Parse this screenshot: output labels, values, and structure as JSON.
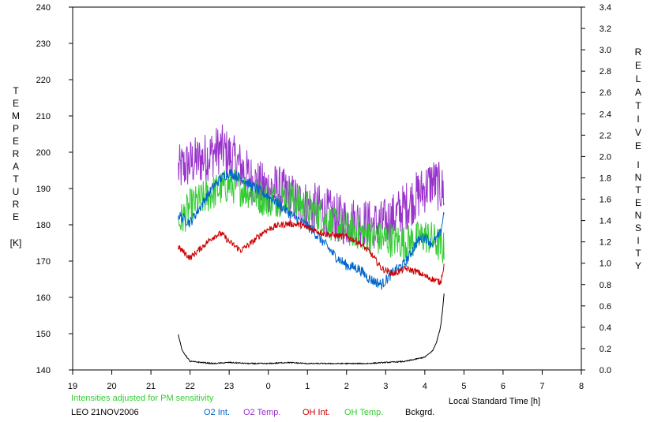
{
  "chart_data": {
    "type": "line",
    "left_axis": {
      "label_letters": [
        "T",
        "E",
        "M",
        "P",
        "E",
        "R",
        "A",
        "T",
        "U",
        "R",
        "E"
      ],
      "unit": "[K]",
      "range": [
        140,
        240
      ],
      "ticks": [
        "140",
        "150",
        "160",
        "170",
        "180",
        "190",
        "200",
        "210",
        "220",
        "230",
        "240"
      ]
    },
    "right_axis": {
      "label_word1": [
        "R",
        "E",
        "L",
        "A",
        "T",
        "I",
        "V",
        "E"
      ],
      "label_word2": [
        "I",
        "N",
        "T",
        "E",
        "N",
        "S",
        "I",
        "T",
        "Y"
      ],
      "range": [
        0.0,
        3.4
      ],
      "ticks": [
        "0.0",
        "0.2",
        "0.4",
        "0.6",
        "0.8",
        "1.0",
        "1.2",
        "1.4",
        "1.6",
        "1.8",
        "2.0",
        "2.2",
        "2.4",
        "2.6",
        "2.8",
        "3.0",
        "3.2",
        "3.4"
      ]
    },
    "x_axis": {
      "label": "Local Standard Time [h]",
      "range": [
        19,
        32
      ],
      "ticks": [
        "19",
        "20",
        "21",
        "22",
        "23",
        "0",
        "1",
        "2",
        "3",
        "4",
        "5",
        "6",
        "7",
        "8"
      ]
    },
    "note": "Intensities adjusted for PM sensitivity",
    "site_date": "LEO 21NOV2006",
    "legend": [
      {
        "label": "O2 Int.",
        "color": "#0066cc"
      },
      {
        "label": "O2 Temp.",
        "color": "#9933cc"
      },
      {
        "label": "OH Int.",
        "color": "#cc0000"
      },
      {
        "label": "OH Temp.",
        "color": "#33cc33"
      },
      {
        "label": "Bckgrd.",
        "color": "#000000"
      }
    ],
    "series": [
      {
        "name": "O2 Temp.",
        "axis": "left",
        "color": "#9933cc",
        "noise": 7,
        "x": [
          21.7,
          22.0,
          22.3,
          22.6,
          22.8,
          23.0,
          23.3,
          23.6,
          23.9,
          24.2,
          24.5,
          24.8,
          25.1,
          25.4,
          25.7,
          26.0,
          26.3,
          26.6,
          26.9,
          27.2,
          27.5,
          27.8,
          28.0,
          28.2,
          28.4,
          28.5
        ],
        "y": [
          195,
          197,
          198,
          200,
          201,
          199,
          196,
          192,
          190,
          190,
          188,
          186,
          185,
          184,
          182,
          181,
          181,
          180,
          180,
          182,
          185,
          188,
          190,
          192,
          190,
          189
        ]
      },
      {
        "name": "OH Temp.",
        "axis": "left",
        "color": "#33cc33",
        "noise": 5,
        "x": [
          21.7,
          22.0,
          22.3,
          22.6,
          22.8,
          23.0,
          23.3,
          23.6,
          23.9,
          24.2,
          24.5,
          24.8,
          25.1,
          25.4,
          25.7,
          26.0,
          26.3,
          26.6,
          26.9,
          27.2,
          27.5,
          27.8,
          28.0,
          28.2,
          28.4,
          28.5
        ],
        "y": [
          180,
          185,
          187,
          189,
          190,
          191,
          190,
          189,
          187,
          187,
          188,
          186,
          184,
          182,
          180,
          179,
          178,
          177,
          176,
          176,
          175,
          176,
          177,
          176,
          174,
          173
        ]
      },
      {
        "name": "O2 Int.",
        "axis": "right",
        "color": "#0066cc",
        "noise": 0.05,
        "x": [
          21.7,
          22.0,
          22.3,
          22.6,
          22.8,
          23.0,
          23.3,
          23.6,
          23.9,
          24.2,
          24.5,
          24.8,
          25.1,
          25.4,
          25.7,
          26.0,
          26.3,
          26.6,
          26.9,
          27.2,
          27.5,
          27.8,
          28.0,
          28.2,
          28.4,
          28.5
        ],
        "y": [
          1.45,
          1.38,
          1.55,
          1.72,
          1.8,
          1.85,
          1.8,
          1.72,
          1.65,
          1.58,
          1.48,
          1.4,
          1.32,
          1.2,
          1.07,
          0.98,
          0.95,
          0.85,
          0.8,
          0.92,
          1.0,
          1.2,
          1.25,
          1.18,
          1.28,
          1.5
        ]
      },
      {
        "name": "OH Int.",
        "axis": "right",
        "color": "#cc0000",
        "noise": 0.03,
        "x": [
          21.7,
          22.0,
          22.3,
          22.6,
          22.8,
          23.0,
          23.3,
          23.6,
          23.9,
          24.2,
          24.5,
          24.8,
          25.1,
          25.4,
          25.7,
          26.0,
          26.3,
          26.6,
          26.9,
          27.2,
          27.5,
          27.8,
          28.0,
          28.2,
          28.4,
          28.5
        ],
        "y": [
          1.15,
          1.05,
          1.15,
          1.25,
          1.28,
          1.2,
          1.12,
          1.2,
          1.3,
          1.35,
          1.37,
          1.36,
          1.32,
          1.28,
          1.26,
          1.25,
          1.2,
          1.1,
          0.95,
          0.9,
          0.95,
          0.92,
          0.88,
          0.85,
          0.82,
          1.0
        ]
      },
      {
        "name": "Bckgrd.",
        "axis": "right",
        "color": "#000000",
        "noise": 0.005,
        "x": [
          21.7,
          21.8,
          22.0,
          22.3,
          22.6,
          23.0,
          23.5,
          24.0,
          24.5,
          25.0,
          25.5,
          26.0,
          26.5,
          27.0,
          27.5,
          28.0,
          28.2,
          28.3,
          28.4,
          28.45,
          28.5
        ],
        "y": [
          0.33,
          0.18,
          0.08,
          0.07,
          0.06,
          0.07,
          0.06,
          0.06,
          0.07,
          0.06,
          0.06,
          0.06,
          0.06,
          0.07,
          0.08,
          0.12,
          0.18,
          0.26,
          0.4,
          0.55,
          0.75
        ]
      }
    ]
  }
}
